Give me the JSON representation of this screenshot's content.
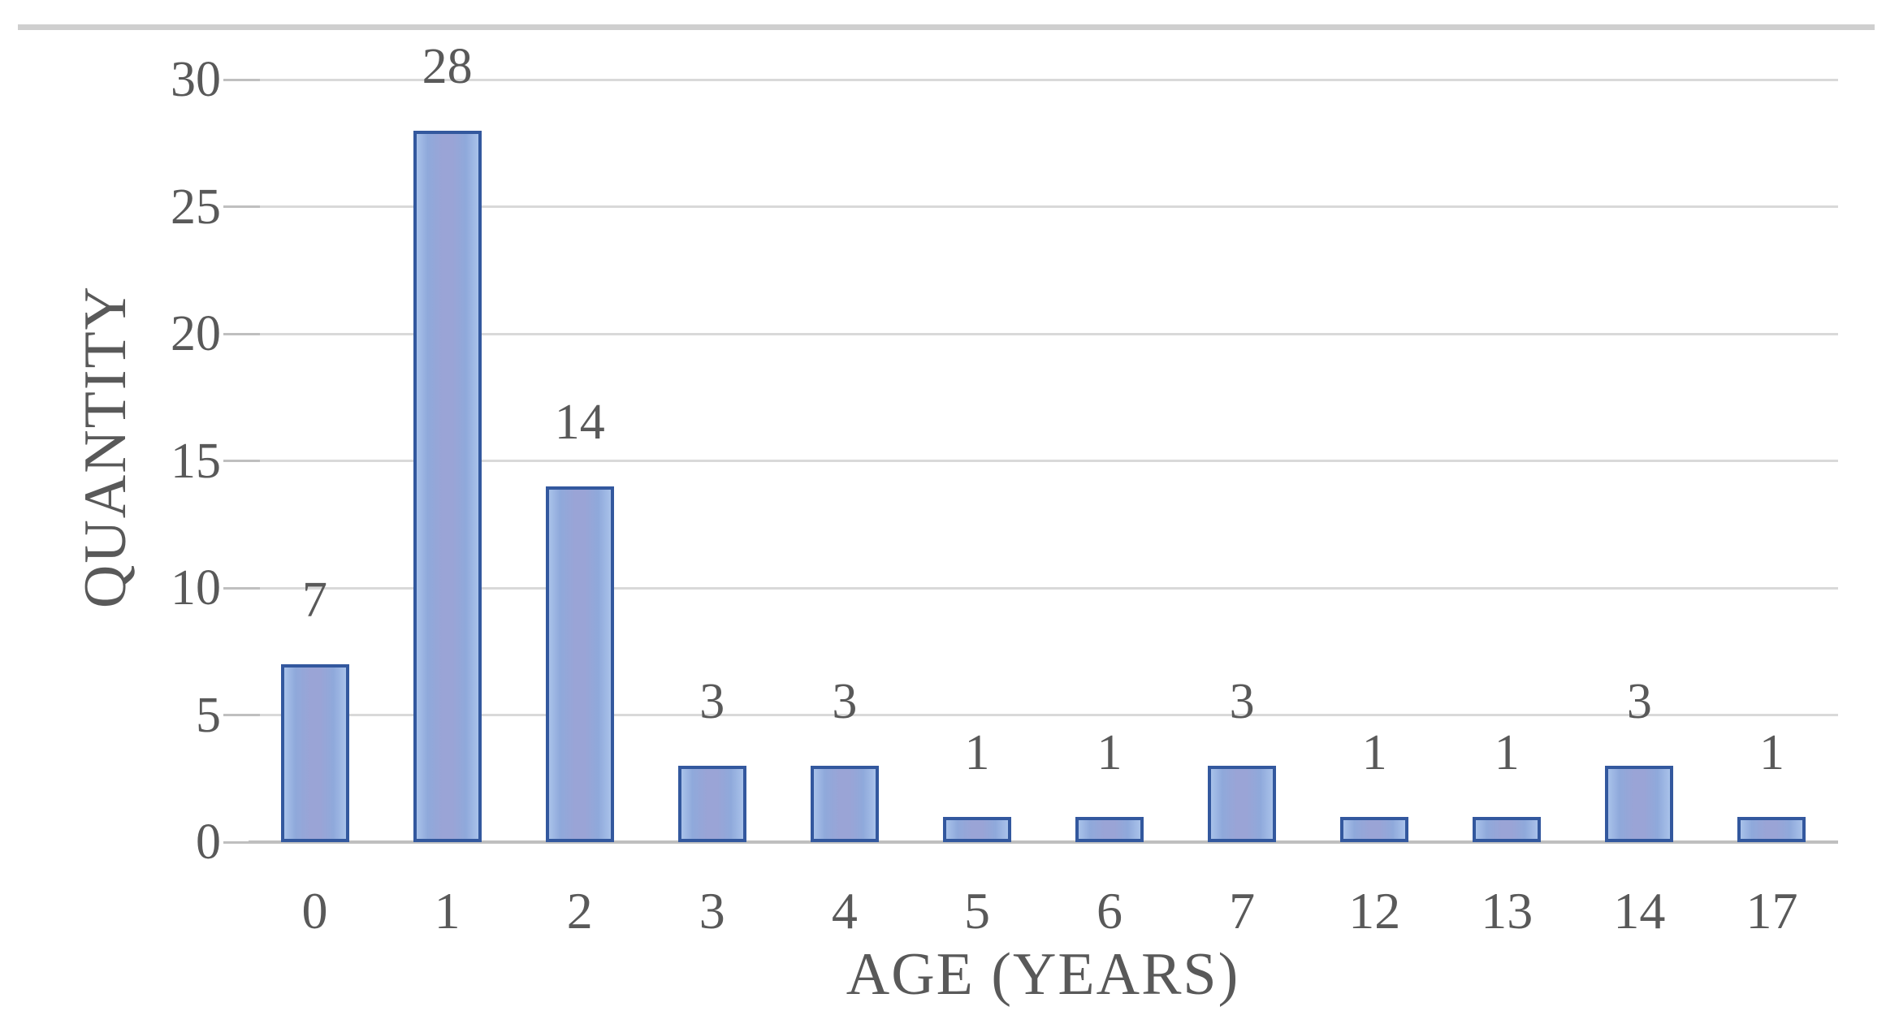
{
  "chart_data": {
    "type": "bar",
    "categories": [
      "0",
      "1",
      "2",
      "3",
      "4",
      "5",
      "6",
      "7",
      "12",
      "13",
      "14",
      "17"
    ],
    "values": [
      7,
      28,
      14,
      3,
      3,
      1,
      1,
      3,
      1,
      1,
      3,
      1
    ],
    "title": "",
    "xlabel": "AGE (YEARS)",
    "ylabel": "QUANTITY",
    "ylim": [
      0,
      30
    ],
    "yticks": [
      0,
      5,
      10,
      15,
      20,
      25,
      30
    ],
    "grid": true,
    "legend": false,
    "data_labels": true,
    "bar_orientation": "vertical"
  },
  "colors": {
    "bar_fill": "#8FA9DB",
    "bar_fill_light": "#A9C2EA",
    "bar_fill_mid": "#9AA4D6",
    "bar_border": "#33589E",
    "gridline": "#D9D9D9",
    "axis_line": "#BFBFBF",
    "text": "#595959",
    "top_rule": "#CFCFCF"
  }
}
